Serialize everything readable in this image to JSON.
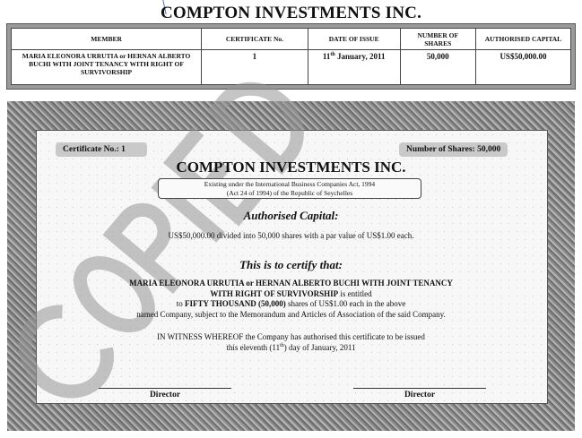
{
  "header": {
    "title": "COMPTON INVESTMENTS INC."
  },
  "register": {
    "columns": [
      "MEMBER",
      "CERTIFICATE No.",
      "DATE OF ISSUE",
      "NUMBER OF SHARES",
      "AUTHORISED CAPITAL"
    ],
    "row": {
      "member": "MARIA ELEONORA URRUTIA or HERNAN ALBERTO BUCHI WITH JOINT TENANCY WITH RIGHT OF SURVIVORSHIP",
      "certificate_no": "1",
      "date_day": "11",
      "date_suffix": "th",
      "date_rest": " January, 2011",
      "shares": "50,000",
      "capital": "US$50,000.00"
    }
  },
  "certificate": {
    "cert_no_label": "Certificate No.:  1",
    "shares_label": "Number of Shares: 50,000",
    "company": "COMPTON INVESTMENTS INC.",
    "existing_line1": "Existing under the International Business Companies Act, 1994",
    "existing_line2": "(Act 24 of 1994) of the Republic of Seychelles",
    "auth_heading": "Authorised Capital:",
    "auth_text": "US$50,000.00 divided into 50,000 shares with a par value of US$1.00 each.",
    "certify_heading": "This is to certify that:",
    "holder_line1": "MARIA ELEONORA URRUTIA or HERNAN ALBERTO BUCHI WITH JOINT TENANCY",
    "holder_line2_bold": "WITH RIGHT OF SURVIVORSHIP",
    "holder_line2_rest": " is entitled",
    "line3_pre": "to ",
    "line3_bold": "FIFTY THOUSAND (50,000)",
    "line3_rest": " shares of US$1.00 each in the above",
    "line4": "named Company, subject to the Memorandum and Articles of Association of the said Company.",
    "witness_line1": "IN WITNESS WHEREOF the Company has authorised this certificate to be issued",
    "witness_line2_pre": "this eleventh (11",
    "witness_line2_sup": "th",
    "witness_line2_post": ") day of January, 2011",
    "signatures": [
      "Director",
      "Director"
    ]
  },
  "watermark": "COPIED"
}
